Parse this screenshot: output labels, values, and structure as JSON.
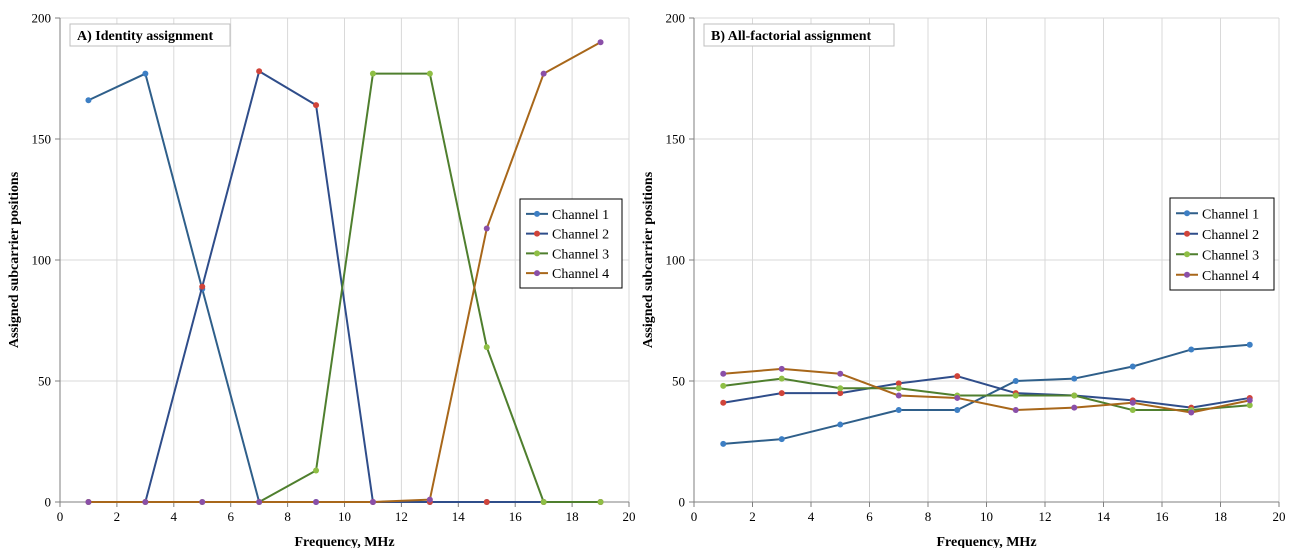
{
  "chart_data": [
    {
      "type": "line",
      "title": "A) Identity assignment",
      "xlabel": "Frequency, MHz",
      "ylabel": "Assigned subcarrier positions",
      "xlim": [
        0,
        20
      ],
      "ylim": [
        0,
        200
      ],
      "xticks": [
        0,
        2,
        4,
        6,
        8,
        10,
        12,
        14,
        16,
        18,
        20
      ],
      "yticks": [
        0,
        50,
        100,
        150,
        200
      ],
      "grid": true,
      "legend_position": "right",
      "x": [
        1,
        3,
        5,
        7,
        9,
        11,
        13,
        15,
        17,
        19
      ],
      "series": [
        {
          "name": "Channel 1",
          "values": [
            166,
            177,
            88,
            0,
            0,
            0,
            0,
            0,
            0,
            0
          ]
        },
        {
          "name": "Channel 2",
          "values": [
            0,
            0,
            89,
            178,
            164,
            0,
            0,
            0,
            0,
            0
          ]
        },
        {
          "name": "Channel 3",
          "values": [
            0,
            0,
            0,
            0,
            13,
            177,
            177,
            64,
            0,
            0
          ]
        },
        {
          "name": "Channel 4",
          "values": [
            0,
            0,
            0,
            0,
            0,
            0,
            1,
            113,
            177,
            190
          ]
        }
      ]
    },
    {
      "type": "line",
      "title": "B) All-factorial assignment",
      "xlabel": "Frequency, MHz",
      "ylabel": "Assigned subcarrier positions",
      "xlim": [
        0,
        20
      ],
      "ylim": [
        0,
        200
      ],
      "xticks": [
        0,
        2,
        4,
        6,
        8,
        10,
        12,
        14,
        16,
        18,
        20
      ],
      "yticks": [
        0,
        50,
        100,
        150,
        200
      ],
      "grid": true,
      "legend_position": "right",
      "x": [
        1,
        3,
        5,
        7,
        9,
        11,
        13,
        15,
        17,
        19
      ],
      "series": [
        {
          "name": "Channel 1",
          "values": [
            24,
            26,
            32,
            38,
            38,
            50,
            51,
            56,
            63,
            65
          ]
        },
        {
          "name": "Channel 2",
          "values": [
            41,
            45,
            45,
            49,
            52,
            45,
            44,
            42,
            39,
            43
          ]
        },
        {
          "name": "Channel 3",
          "values": [
            48,
            51,
            47,
            47,
            44,
            44,
            44,
            38,
            38,
            40
          ]
        },
        {
          "name": "Channel 4",
          "values": [
            53,
            55,
            53,
            44,
            43,
            38,
            39,
            41,
            37,
            42
          ]
        }
      ]
    }
  ],
  "colors": {
    "line": [
      "#2f5f8a",
      "#2f4d8a",
      "#4f7f2e",
      "#a8671a"
    ],
    "marker": [
      "#3d7fc4",
      "#d0443a",
      "#8fbf45",
      "#8a4fa8"
    ],
    "grid": "#d9d9d9",
    "axis": "#7f7f7f"
  }
}
